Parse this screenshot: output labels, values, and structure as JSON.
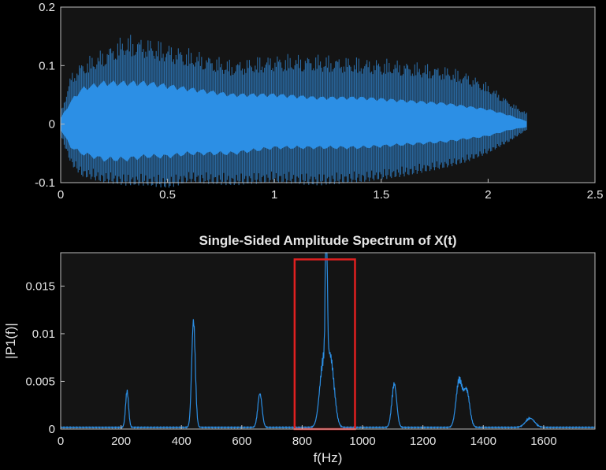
{
  "chart_data": [
    {
      "type": "line",
      "title": "",
      "xlabel": "",
      "ylabel": "",
      "xlim": [
        0,
        2.5
      ],
      "ylim": [
        -0.1,
        0.2
      ],
      "xticks": [
        0,
        0.5,
        1,
        1.5,
        2,
        2.5
      ],
      "xtick_labels": [
        "0",
        "0.5",
        "1",
        "1.5",
        "2",
        "2.5"
      ],
      "yticks": [
        -0.1,
        0,
        0.1,
        0.2
      ],
      "ytick_labels": [
        "-0.1",
        "0",
        "0.1",
        "0.2"
      ],
      "signal_end_s": 2.18,
      "envelope": {
        "t": [
          0,
          0.05,
          0.1,
          0.2,
          0.3,
          0.4,
          0.5,
          0.6,
          0.8,
          1.0,
          1.2,
          1.4,
          1.6,
          1.8,
          1.9,
          2.0,
          2.1,
          2.18
        ],
        "outer_upper": [
          0.02,
          0.09,
          0.11,
          0.13,
          0.155,
          0.15,
          0.14,
          0.13,
          0.11,
          0.12,
          0.12,
          0.115,
          0.11,
          0.1,
          0.09,
          0.07,
          0.04,
          0.02
        ],
        "outer_lower": [
          -0.02,
          -0.07,
          -0.09,
          -0.1,
          -0.105,
          -0.105,
          -0.11,
          -0.1,
          -0.105,
          -0.1,
          -0.105,
          -0.1,
          -0.09,
          -0.075,
          -0.065,
          -0.05,
          -0.03,
          -0.01
        ],
        "inner_upper": [
          0.01,
          0.04,
          0.06,
          0.07,
          0.07,
          0.07,
          0.065,
          0.06,
          0.05,
          0.05,
          0.045,
          0.045,
          0.04,
          0.035,
          0.03,
          0.025,
          0.015,
          0.005
        ],
        "inner_lower": [
          -0.01,
          -0.04,
          -0.05,
          -0.06,
          -0.06,
          -0.055,
          -0.055,
          -0.05,
          -0.05,
          -0.04,
          -0.04,
          -0.04,
          -0.035,
          -0.03,
          -0.025,
          -0.02,
          -0.01,
          -0.005
        ]
      }
    },
    {
      "type": "line",
      "title": "Single-Sided Amplitude Spectrum of X(t)",
      "xlabel": "f(Hz)",
      "ylabel": "|P1(f)|",
      "xlim": [
        0,
        1770
      ],
      "ylim": [
        0,
        0.0185
      ],
      "xticks": [
        0,
        200,
        400,
        600,
        800,
        1000,
        1200,
        1400,
        1600
      ],
      "xtick_labels": [
        "0",
        "200",
        "400",
        "600",
        "800",
        "1000",
        "1200",
        "1400",
        "1600"
      ],
      "yticks": [
        0,
        0.005,
        0.01,
        0.015
      ],
      "ytick_labels": [
        "0",
        "0.005",
        "0.01",
        "0.015"
      ],
      "peaks": [
        {
          "f": 220,
          "amp": 0.004,
          "width": 5
        },
        {
          "f": 440,
          "amp": 0.0117,
          "width": 6
        },
        {
          "f": 660,
          "amp": 0.0037,
          "width": 7
        },
        {
          "f": 880,
          "amp": 0.0177,
          "width": 3
        },
        {
          "f": 870,
          "amp": 0.007,
          "width": 12
        },
        {
          "f": 895,
          "amp": 0.007,
          "width": 12
        },
        {
          "f": 1105,
          "amp": 0.0048,
          "width": 8
        },
        {
          "f": 1320,
          "amp": 0.0052,
          "width": 10
        },
        {
          "f": 1345,
          "amp": 0.004,
          "width": 10
        },
        {
          "f": 1555,
          "amp": 0.001,
          "width": 15
        }
      ],
      "highlight_box": {
        "f_start": 775,
        "f_end": 975,
        "amp_top": 0.0178,
        "color": "#e02020"
      }
    }
  ],
  "colors": {
    "background": "#000000",
    "axes_background": "#141414",
    "axis_line": "#bdbdbd",
    "series": "#2c8fe5",
    "series_dark": "#2a6aa3"
  }
}
